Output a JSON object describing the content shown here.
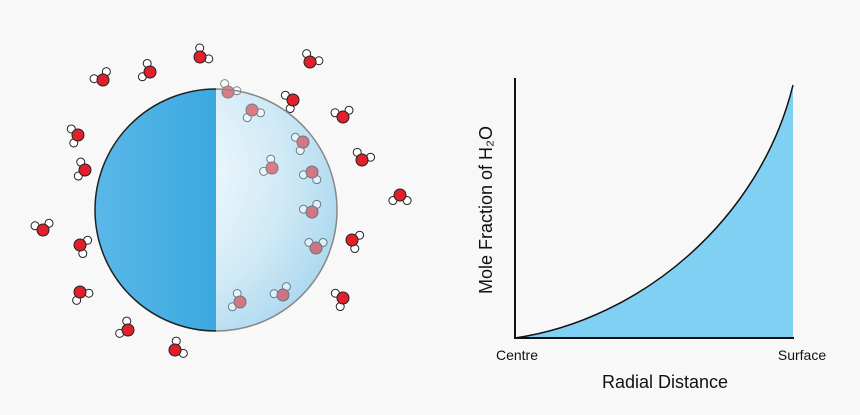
{
  "diagram": {
    "y_axis_label": "Mole Fraction of H₂O",
    "x_start_label": "Centre",
    "x_end_label": "Surface",
    "x_axis_label": "Radial Distance"
  }
}
